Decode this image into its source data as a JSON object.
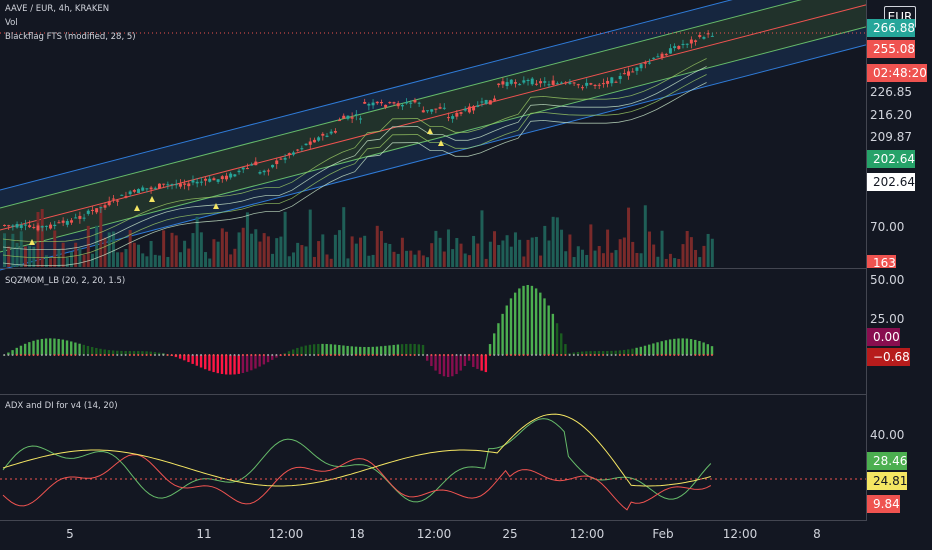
{
  "legends": {
    "main": "AAVE / EUR, 4h, KRAKEN",
    "vol": "Vol",
    "fts": "Blackflag FTS (modified, 28, 5)",
    "sqz": "SQZMOM_LB (20, 2, 20, 1.5)",
    "adx": "ADX and DI for v4 (14, 20)"
  },
  "currency": "EUR",
  "price_axis": {
    "labels": [
      "226.85",
      "216.20",
      "209.87",
      "70.00"
    ],
    "tags": [
      {
        "text": "266.88",
        "bg": "#26a69a",
        "fg": "#ffffff"
      },
      {
        "text": "255.08",
        "bg": "#ef5350",
        "fg": "#ffffff"
      },
      {
        "text": "02:48:20",
        "bg": "#ef5350",
        "fg": "#ffffff"
      },
      {
        "text": "202.64",
        "bg": "#26a269",
        "fg": "#ffffff"
      },
      {
        "text": "202.64",
        "bg": "#ffffff",
        "fg": "#131722"
      },
      {
        "text": "163",
        "bg": "#ef5350",
        "fg": "#ffffff"
      }
    ]
  },
  "sqz_axis": {
    "labels": [
      "50.00",
      "25.00"
    ],
    "tags": [
      {
        "text": "0.00",
        "bg": "#880e4f",
        "fg": "#ffffff"
      },
      {
        "text": "−0.68",
        "bg": "#b71c1c",
        "fg": "#ffffff"
      }
    ]
  },
  "adx_axis": {
    "labels": [
      "40.00"
    ],
    "tags": [
      {
        "text": "28.46",
        "bg": "#4caf50",
        "fg": "#ffffff"
      },
      {
        "text": "24.81",
        "bg": "#f5e663",
        "fg": "#131722"
      },
      {
        "text": "9.84",
        "bg": "#ef5350",
        "fg": "#ffffff"
      }
    ]
  },
  "time_axis": [
    "5",
    "11",
    "12:00",
    "18",
    "12:00",
    "25",
    "12:00",
    "Feb",
    "12:00",
    "8"
  ],
  "colors": {
    "bg": "#131722",
    "up": "#26a69a",
    "down": "#ef5350",
    "vol_up": "#1f5f57",
    "vol_down": "#7a2a2a",
    "sqz_green": "#4caf50",
    "sqz_red": "#ff1744",
    "di_plus": "#66bb6a",
    "di_minus": "#ef5350",
    "adx": "#f5e663",
    "channel": "#2962ff"
  }
}
